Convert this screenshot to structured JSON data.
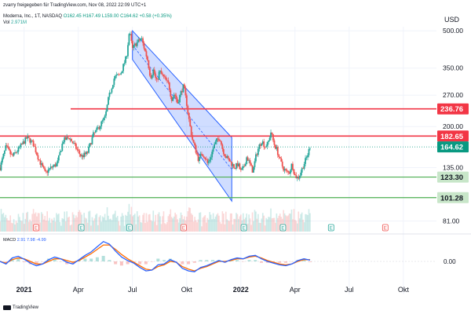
{
  "header": {
    "top_line": "zvarry freigegeben für TradingView.com, Nov 08, 2022 22:09 UTC+1",
    "symbol_line": "Moderna, Inc., 1T, NASDAQ",
    "ohlc": "O162.45 H167.49 L159.00 C164.62 +0.58 (+0.35%)",
    "vol_label": "Vol",
    "vol_value": "2.971M"
  },
  "footer": {
    "brand": "TradingView"
  },
  "chart_data": {
    "type": "candlestick",
    "currency_label": "USD",
    "y_scale": "log",
    "price_ticks": [
      "500.00",
      "350.00",
      "270.00",
      "200.00",
      "135.00",
      "81.00"
    ],
    "x_ticks": [
      "2021",
      "Apr",
      "Jul",
      "Okt",
      "2022",
      "Apr",
      "Jul",
      "Okt"
    ],
    "price_path": [
      [
        0,
        135
      ],
      [
        2,
        165
      ],
      [
        4,
        150
      ],
      [
        6,
        160
      ],
      [
        9,
        180
      ],
      [
        11,
        170
      ],
      [
        13,
        145
      ],
      [
        15,
        128
      ],
      [
        17,
        135
      ],
      [
        19,
        140
      ],
      [
        21,
        175
      ],
      [
        23,
        180
      ],
      [
        25,
        165
      ],
      [
        27,
        150
      ],
      [
        29,
        155
      ],
      [
        31,
        185
      ],
      [
        33,
        200
      ],
      [
        35,
        220
      ],
      [
        36,
        260
      ],
      [
        38,
        320
      ],
      [
        40,
        330
      ],
      [
        42,
        390
      ],
      [
        43,
        500
      ],
      [
        44,
        420
      ],
      [
        45,
        440
      ],
      [
        47,
        465
      ],
      [
        48,
        420
      ],
      [
        49,
        380
      ],
      [
        50,
        320
      ],
      [
        51,
        345
      ],
      [
        52,
        305
      ],
      [
        53,
        340
      ],
      [
        54,
        325
      ],
      [
        56,
        300
      ],
      [
        57,
        260
      ],
      [
        58,
        275
      ],
      [
        59,
        250
      ],
      [
        60,
        275
      ],
      [
        61,
        295
      ],
      [
        62,
        250
      ],
      [
        63,
        205
      ],
      [
        64,
        175
      ],
      [
        65,
        160
      ],
      [
        66,
        145
      ],
      [
        67,
        155
      ],
      [
        68,
        150
      ],
      [
        69,
        140
      ],
      [
        70,
        150
      ],
      [
        71,
        165
      ],
      [
        72,
        175
      ],
      [
        73,
        180
      ],
      [
        74,
        160
      ],
      [
        75,
        150
      ],
      [
        76,
        145
      ],
      [
        77,
        140
      ],
      [
        78,
        135
      ],
      [
        79,
        140
      ],
      [
        80,
        130
      ],
      [
        81,
        135
      ],
      [
        82,
        150
      ],
      [
        83,
        140
      ],
      [
        84,
        130
      ],
      [
        85,
        150
      ],
      [
        86,
        165
      ],
      [
        87,
        175
      ],
      [
        88,
        165
      ],
      [
        89,
        170
      ],
      [
        90,
        190
      ],
      [
        91,
        170
      ],
      [
        92,
        160
      ],
      [
        93,
        145
      ],
      [
        94,
        135
      ],
      [
        95,
        130
      ],
      [
        96,
        128
      ],
      [
        97,
        140
      ],
      [
        98,
        125
      ],
      [
        99,
        122
      ],
      [
        100,
        130
      ],
      [
        101,
        140
      ],
      [
        102,
        150
      ],
      [
        103,
        165
      ]
    ],
    "channel": {
      "upper_start": [
        44,
        500
      ],
      "upper_end": [
        77,
        180
      ],
      "lower_start": [
        44,
        380
      ],
      "lower_end": [
        77,
        98
      ]
    },
    "levels": [
      {
        "price": 236.76,
        "label": "236.76",
        "color": "#f23645",
        "style": "resistance"
      },
      {
        "price": 182.65,
        "label": "182.65",
        "color": "#f23645",
        "style": "resistance"
      },
      {
        "price": 164.62,
        "label": "164.62",
        "color": "#089981",
        "style": "current"
      },
      {
        "price": 123.3,
        "label": "123.30",
        "color": "#4caf50",
        "style": "support"
      },
      {
        "price": 101.28,
        "label": "101.28",
        "color": "#4caf50",
        "style": "support"
      }
    ],
    "event_markers": [
      {
        "x": 12,
        "kind": "earnings-down"
      },
      {
        "x": 27,
        "kind": "earnings-up"
      },
      {
        "x": 43,
        "kind": "earnings-up"
      },
      {
        "x": 61,
        "kind": "earnings-down"
      },
      {
        "x": 81,
        "kind": "earnings-up"
      },
      {
        "x": 94,
        "kind": "earnings-up"
      },
      {
        "x": 110,
        "kind": "earnings-up"
      },
      {
        "x": 128,
        "kind": "earnings-down"
      }
    ],
    "macd": {
      "label": "MACD",
      "values_text": "2.91  7.98  -4.99",
      "axis_tick": "0.00",
      "macd_line": [
        0,
        -6,
        8,
        12,
        5,
        -4,
        -10,
        -6,
        4,
        10,
        6,
        -2,
        -6,
        4,
        14,
        22,
        34,
        46,
        40,
        24,
        10,
        2,
        -4,
        -14,
        -22,
        -20,
        -8,
        -6,
        4,
        -2,
        -16,
        -22,
        -24,
        -14,
        -10,
        -4,
        2,
        -2,
        4,
        8,
        6,
        12,
        14,
        6,
        0,
        -4,
        -8,
        -10,
        -6,
        2,
        6,
        3
      ],
      "signal_line": [
        0,
        -4,
        4,
        8,
        6,
        0,
        -6,
        -6,
        0,
        6,
        6,
        2,
        -2,
        2,
        10,
        18,
        28,
        38,
        38,
        28,
        16,
        6,
        -2,
        -10,
        -18,
        -20,
        -12,
        -8,
        0,
        -2,
        -12,
        -18,
        -22,
        -16,
        -12,
        -6,
        0,
        0,
        2,
        6,
        6,
        10,
        12,
        8,
        2,
        -2,
        -6,
        -8,
        -6,
        0,
        4,
        4
      ]
    },
    "colors": {
      "up": "#26a69a",
      "down": "#ef5350",
      "channel": "#2962ff",
      "macd": "#2962ff",
      "signal": "#ff6d00"
    }
  }
}
